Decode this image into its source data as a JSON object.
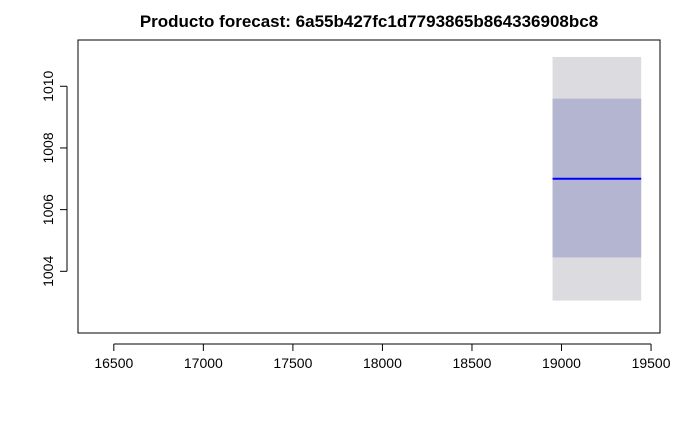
{
  "chart_data": {
    "type": "line",
    "title": "Producto forecast:  6a55b427fc1d7793865b864336908bc8",
    "xlabel": "",
    "ylabel": "",
    "xlim": [
      16300,
      19550
    ],
    "ylim": [
      1002.0,
      1011.5
    ],
    "x_ticks": [
      16500,
      17000,
      17500,
      18000,
      18500,
      19000,
      19500
    ],
    "y_ticks": [
      1004,
      1006,
      1008,
      1010
    ],
    "forecast": {
      "x_start": 18950,
      "x_end": 19445,
      "mean": 1007.0,
      "interval_80": [
        1004.45,
        1009.6
      ],
      "interval_95": [
        1003.05,
        1010.95
      ]
    },
    "colors": {
      "mean_line": "#0000ff",
      "interval_80": "#b3b5d1",
      "interval_95": "#dcdbe0"
    },
    "grid": false,
    "legend": "none"
  }
}
